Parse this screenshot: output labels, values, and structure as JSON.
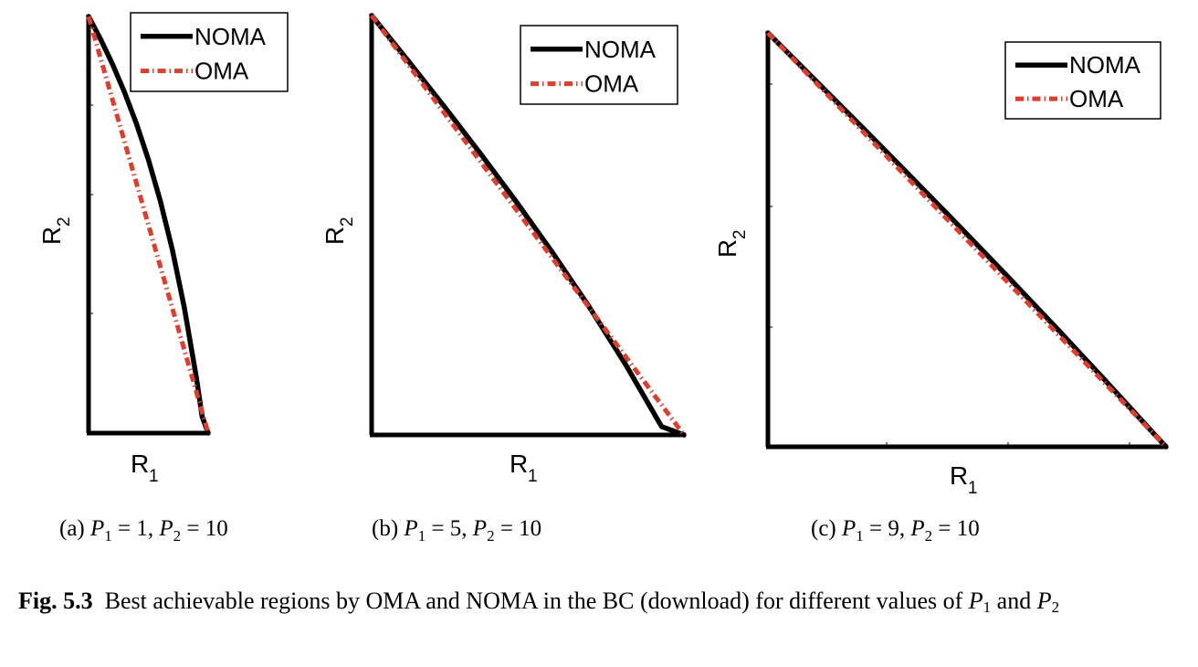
{
  "chart_data": [
    {
      "type": "line",
      "panel": "a",
      "caption": {
        "prefix": "(a)",
        "p1": 1,
        "p2": 10
      },
      "xlabel": "R",
      "xlabel_sub": "1",
      "ylabel": "R",
      "ylabel_sub": "2",
      "legend": {
        "position": "top-right",
        "entries": [
          "NOMA",
          "OMA"
        ]
      },
      "xlim": [
        0,
        1
      ],
      "ylim": [
        0,
        3.46
      ],
      "series": [
        {
          "name": "NOMA",
          "color": "#000000",
          "style": "solid",
          "x": [
            0,
            0.1,
            0.2,
            0.3,
            0.4,
            0.5,
            0.6,
            0.7,
            0.8,
            0.9,
            0.95,
            1.0,
            1.0
          ],
          "y": [
            3.46,
            3.272,
            3.064,
            2.832,
            2.57,
            2.272,
            1.927,
            1.524,
            1.045,
            0.469,
            0.136,
            0.0,
            0.0
          ]
        },
        {
          "name": "OMA",
          "color": "#d9402f",
          "style": "dash-dot",
          "x": [
            0,
            1
          ],
          "y": [
            3.46,
            0
          ]
        }
      ]
    },
    {
      "type": "line",
      "panel": "b",
      "caption": {
        "prefix": "(b)",
        "p1": 5,
        "p2": 10
      },
      "xlabel": "R",
      "xlabel_sub": "1",
      "ylabel": "R",
      "ylabel_sub": "2",
      "legend": {
        "position": "top-right",
        "entries": [
          "NOMA",
          "OMA"
        ]
      },
      "xlim": [
        0,
        2.585
      ],
      "ylim": [
        0,
        3.46
      ],
      "series": [
        {
          "name": "NOMA",
          "color": "#000000",
          "style": "solid",
          "x": [
            0,
            0.3,
            0.6,
            0.9,
            1.2,
            1.5,
            1.8,
            2.1,
            2.4,
            2.585
          ],
          "y": [
            3.46,
            3.09,
            2.711,
            2.322,
            1.92,
            1.5,
            1.058,
            0.585,
            0.069,
            0.0
          ]
        },
        {
          "name": "OMA",
          "color": "#d9402f",
          "style": "dash-dot",
          "x": [
            0,
            2.585
          ],
          "y": [
            3.46,
            0
          ]
        }
      ]
    },
    {
      "type": "line",
      "panel": "c",
      "caption": {
        "prefix": "(c)",
        "p1": 9,
        "p2": 10
      },
      "xlabel": "R",
      "xlabel_sub": "1",
      "ylabel": "R",
      "ylabel_sub": "2",
      "legend": {
        "position": "top-right",
        "entries": [
          "NOMA",
          "OMA"
        ]
      },
      "xlim": [
        0,
        3.32
      ],
      "ylim": [
        0,
        3.46
      ],
      "series": [
        {
          "name": "NOMA",
          "color": "#000000",
          "style": "solid",
          "x": [
            0,
            0.4,
            0.8,
            1.2,
            1.6,
            2.0,
            2.4,
            2.8,
            3.2,
            3.32
          ],
          "y": [
            3.46,
            3.06,
            2.657,
            2.25,
            1.839,
            1.422,
            0.999,
            0.569,
            0.13,
            0.0
          ]
        },
        {
          "name": "OMA",
          "color": "#d9402f",
          "style": "dash-dot",
          "x": [
            0,
            3.32
          ],
          "y": [
            3.46,
            0
          ]
        }
      ]
    }
  ],
  "figure_caption": {
    "label": "Fig. 5.3",
    "text_before": "Best achievable regions by OMA and NOMA in the BC (download) for different values of ",
    "p1_letter": "P",
    "p1_sub": "1",
    "and": " and ",
    "p2_letter": "P",
    "p2_sub": "2"
  }
}
